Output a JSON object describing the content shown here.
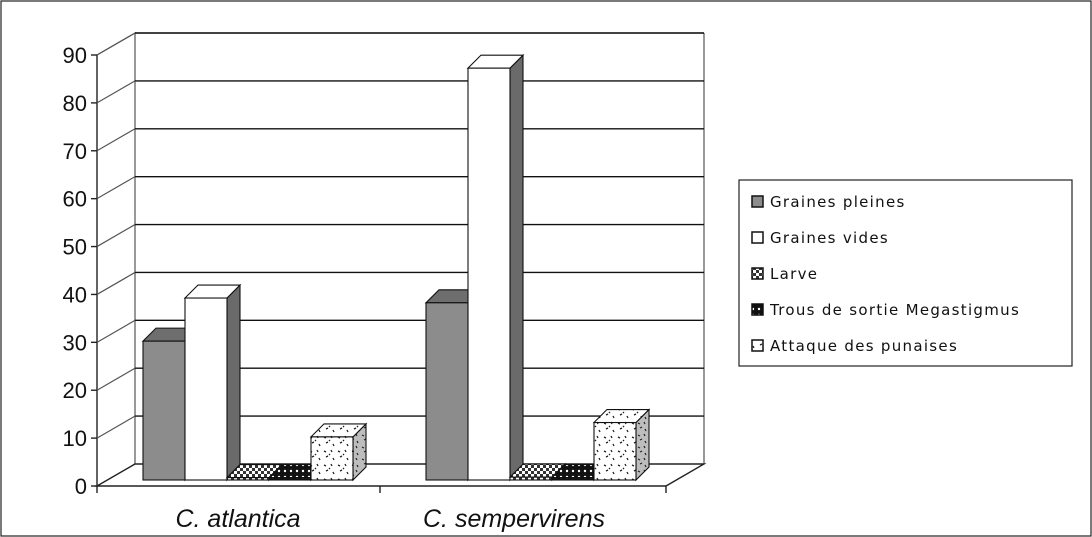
{
  "chart_data": {
    "type": "bar",
    "title": "",
    "xlabel": "",
    "ylabel": "",
    "ylim": [
      0,
      90
    ],
    "yticks": [
      0,
      10,
      20,
      30,
      40,
      50,
      60,
      70,
      80,
      90
    ],
    "grid": true,
    "three_d": true,
    "legend_position": "right",
    "categories": [
      "C. atlantica",
      "C. sempervirens"
    ],
    "series": [
      {
        "name": "Graines pleines",
        "values": [
          29,
          37
        ],
        "pattern": "solid-gray",
        "color": "#8c8c8c"
      },
      {
        "name": "Graines vides",
        "values": [
          38,
          86
        ],
        "pattern": "white",
        "color": "#ffffff"
      },
      {
        "name": "Larve",
        "values": [
          0.5,
          0.6
        ],
        "pattern": "dark-dots",
        "color": "#3a3a3a"
      },
      {
        "name": "Trous de sortie Megastigmus",
        "values": [
          0.5,
          0.5
        ],
        "pattern": "black-dots",
        "color": "#111111"
      },
      {
        "name": "Attaque des punaises",
        "values": [
          9,
          12
        ],
        "pattern": "white-speckle",
        "color": "#ffffff"
      }
    ]
  }
}
